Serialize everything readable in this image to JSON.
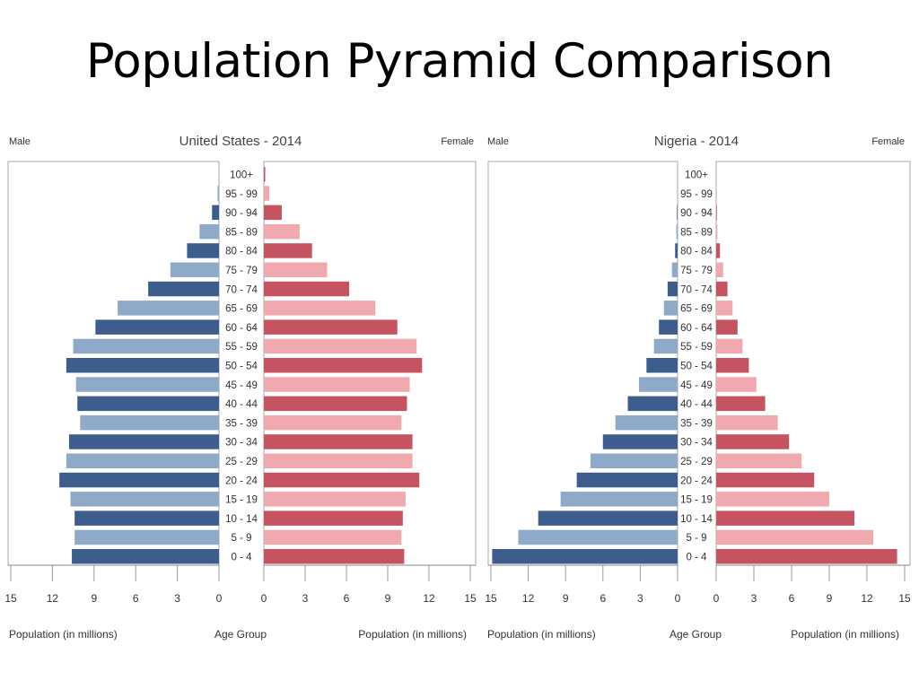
{
  "slide": {
    "title": "Population Pyramid Comparison"
  },
  "colors": {
    "male_dark": "#3d5e8c",
    "male_light": "#8fa9c9",
    "female_dark": "#c65460",
    "female_light": "#f0a9ae"
  },
  "chart_data": [
    {
      "type": "bar",
      "title": "United States - 2014",
      "left_label": "Male",
      "right_label": "Female",
      "left_axis_label": "Population (in millions)",
      "center_axis_label": "Age Group",
      "right_axis_label": "Population (in millions)",
      "xlim": [
        0,
        15
      ],
      "ticks": [
        15,
        12,
        9,
        6,
        3,
        0
      ],
      "ticks_right": [
        0,
        3,
        6,
        9,
        12,
        15
      ],
      "categories": [
        "100+",
        "95 - 99",
        "90 - 94",
        "85 - 89",
        "80 - 84",
        "75 - 79",
        "70 - 74",
        "65 - 69",
        "60 - 64",
        "55 - 59",
        "50 - 54",
        "45 - 49",
        "40 - 44",
        "35 - 39",
        "30 - 34",
        "25 - 29",
        "20 - 24",
        "15 - 19",
        "10 - 14",
        "5 - 9",
        "0 - 4"
      ],
      "series": [
        {
          "name": "Male",
          "values": [
            0.0,
            0.1,
            0.5,
            1.4,
            2.3,
            3.5,
            5.1,
            7.3,
            8.9,
            10.5,
            11.0,
            10.3,
            10.2,
            10.0,
            10.8,
            11.0,
            11.5,
            10.7,
            10.4,
            10.4,
            10.6
          ]
        },
        {
          "name": "Female",
          "values": [
            0.1,
            0.4,
            1.3,
            2.6,
            3.5,
            4.6,
            6.2,
            8.1,
            9.7,
            11.1,
            11.5,
            10.6,
            10.4,
            10.0,
            10.8,
            10.8,
            11.3,
            10.3,
            10.1,
            10.0,
            10.2
          ]
        }
      ]
    },
    {
      "type": "bar",
      "title": "Nigeria - 2014",
      "left_label": "Male",
      "right_label": "Female",
      "left_axis_label": "Population (in millions)",
      "center_axis_label": "Age Group",
      "right_axis_label": "Population (in millions)",
      "xlim": [
        0,
        15
      ],
      "ticks": [
        15,
        12,
        9,
        6,
        3,
        0
      ],
      "ticks_right": [
        0,
        3,
        6,
        9,
        12,
        15
      ],
      "categories": [
        "100+",
        "95 - 99",
        "90 - 94",
        "85 - 89",
        "80 - 84",
        "75 - 79",
        "70 - 74",
        "65 - 69",
        "60 - 64",
        "55 - 59",
        "50 - 54",
        "45 - 49",
        "40 - 44",
        "35 - 39",
        "30 - 34",
        "25 - 29",
        "20 - 24",
        "15 - 19",
        "10 - 14",
        "5 - 9",
        "0 - 4"
      ],
      "series": [
        {
          "name": "Male",
          "values": [
            0.0,
            0.0,
            0.05,
            0.1,
            0.2,
            0.45,
            0.8,
            1.1,
            1.5,
            1.9,
            2.5,
            3.1,
            4.0,
            5.0,
            6.0,
            7.0,
            8.1,
            9.4,
            11.2,
            12.8,
            14.9
          ]
        },
        {
          "name": "Female",
          "values": [
            0.0,
            0.0,
            0.05,
            0.1,
            0.3,
            0.55,
            0.9,
            1.3,
            1.7,
            2.1,
            2.6,
            3.2,
            3.9,
            4.9,
            5.8,
            6.8,
            7.8,
            9.0,
            11.0,
            12.5,
            14.4
          ]
        }
      ]
    }
  ]
}
